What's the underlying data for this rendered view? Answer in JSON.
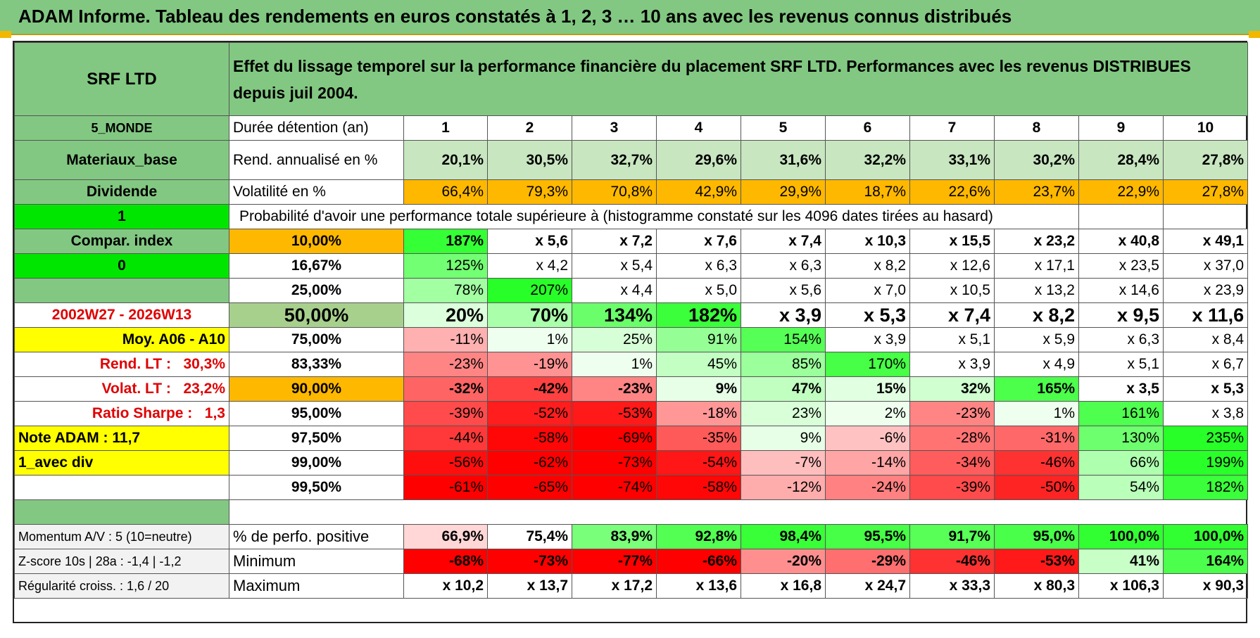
{
  "title": "ADAM Informe. Tableau des rendements en euros constatés à 1, 2, 3 … 10 ans avec les revenus connus distribués",
  "colors": {
    "header_green": "#82c882",
    "light_green": "#c8e6c0",
    "orange": "#ffb800",
    "bright_green": "#00e600",
    "yellow": "#ffff00",
    "label_red": "#e00000"
  },
  "fund": {
    "name": "SRF LTD",
    "description": "Effet du lissage temporel sur la performance financière du placement SRF LTD. Performances avec les revenus DISTRIBUES depuis juil 2004.",
    "zone": "5_MONDE",
    "sector": "Materiaux_base",
    "distribution": "Dividende",
    "flag1": "1",
    "compare_label": "Compar. index",
    "flag2": "0",
    "period": "2002W27 - 2026W13",
    "avg_label": "Moy. A06 - A10",
    "rend_lt_label": "Rend. LT :",
    "rend_lt": "30,3%",
    "volat_lt_label": "Volat. LT :",
    "volat_lt": "23,2%",
    "sharpe_label": "Ratio Sharpe :",
    "sharpe": "1,3",
    "note": "Note ADAM : 11,7",
    "variant": "1_avec div"
  },
  "summary": {
    "durations_label": "Durée détention (an)",
    "durations": [
      "1",
      "2",
      "3",
      "4",
      "5",
      "6",
      "7",
      "8",
      "9",
      "10"
    ],
    "rend_label": "Rend. annualisé en %",
    "rend": [
      "20,1%",
      "30,5%",
      "32,7%",
      "29,6%",
      "31,6%",
      "32,2%",
      "33,1%",
      "30,2%",
      "28,4%",
      "27,8%"
    ],
    "vol_label": "Volatilité en %",
    "vol": [
      "66,4%",
      "79,3%",
      "70,8%",
      "42,9%",
      "29,9%",
      "18,7%",
      "22,6%",
      "23,7%",
      "22,9%",
      "27,8%"
    ]
  },
  "probability": {
    "heading": "Probabilité d'avoir une performance totale supérieure à (histogramme constaté sur les 4096 dates tirées au hasard)",
    "rows": [
      {
        "pct": "10,00%",
        "values": [
          "187%",
          "x 5,6",
          "x 7,2",
          "x 7,6",
          "x 7,4",
          "x 10,3",
          "x 15,5",
          "x 23,2",
          "x 40,8",
          "x 49,1"
        ]
      },
      {
        "pct": "16,67%",
        "values": [
          "125%",
          "x 4,2",
          "x 5,4",
          "x 6,3",
          "x 6,3",
          "x 8,2",
          "x 12,6",
          "x 17,1",
          "x 23,5",
          "x 37,0"
        ]
      },
      {
        "pct": "25,00%",
        "values": [
          "78%",
          "207%",
          "x 4,4",
          "x 5,0",
          "x 5,6",
          "x 7,0",
          "x 10,5",
          "x 13,2",
          "x 14,6",
          "x 23,9"
        ]
      },
      {
        "pct": "50,00%",
        "values": [
          "20%",
          "70%",
          "134%",
          "182%",
          "x 3,9",
          "x 5,3",
          "x 7,4",
          "x 8,2",
          "x 9,5",
          "x 11,6"
        ]
      },
      {
        "pct": "75,00%",
        "values": [
          "-11%",
          "1%",
          "25%",
          "91%",
          "154%",
          "x 3,9",
          "x 5,1",
          "x 5,9",
          "x 6,3",
          "x 8,4"
        ]
      },
      {
        "pct": "83,33%",
        "values": [
          "-23%",
          "-19%",
          "1%",
          "45%",
          "85%",
          "170%",
          "x 3,9",
          "x 4,9",
          "x 5,1",
          "x 6,7"
        ]
      },
      {
        "pct": "90,00%",
        "values": [
          "-32%",
          "-42%",
          "-23%",
          "9%",
          "47%",
          "15%",
          "32%",
          "165%",
          "x 3,5",
          "x 5,3"
        ]
      },
      {
        "pct": "95,00%",
        "values": [
          "-39%",
          "-52%",
          "-53%",
          "-18%",
          "23%",
          "2%",
          "-23%",
          "1%",
          "161%",
          "x 3,8"
        ]
      },
      {
        "pct": "97,50%",
        "values": [
          "-44%",
          "-58%",
          "-69%",
          "-35%",
          "9%",
          "-6%",
          "-28%",
          "-31%",
          "130%",
          "235%"
        ]
      },
      {
        "pct": "99,00%",
        "values": [
          "-56%",
          "-62%",
          "-73%",
          "-54%",
          "-7%",
          "-14%",
          "-34%",
          "-46%",
          "66%",
          "199%"
        ]
      },
      {
        "pct": "99,50%",
        "values": [
          "-61%",
          "-65%",
          "-74%",
          "-58%",
          "-12%",
          "-24%",
          "-39%",
          "-50%",
          "54%",
          "182%"
        ]
      }
    ]
  },
  "bottom": {
    "momentum": "Momentum A/V : 5 (10=neutre)",
    "zscore": "Z-score 10s | 28a : -1,4 | -1,2",
    "regularite": "Régularité croiss. : 1,6 / 20",
    "positive_label": "% de perfo. positive",
    "positive": [
      "66,9%",
      "75,4%",
      "83,9%",
      "92,8%",
      "98,4%",
      "95,5%",
      "91,7%",
      "95,0%",
      "100,0%",
      "100,0%"
    ],
    "min_label": "Minimum",
    "min": [
      "-68%",
      "-73%",
      "-77%",
      "-66%",
      "-20%",
      "-29%",
      "-46%",
      "-53%",
      "41%",
      "164%"
    ],
    "max_label": "Maximum",
    "max": [
      "x 10,2",
      "x 13,7",
      "x 17,2",
      "x 13,6",
      "x 16,8",
      "x 24,7",
      "x 33,3",
      "x 80,3",
      "x 106,3",
      "x 90,3"
    ]
  }
}
